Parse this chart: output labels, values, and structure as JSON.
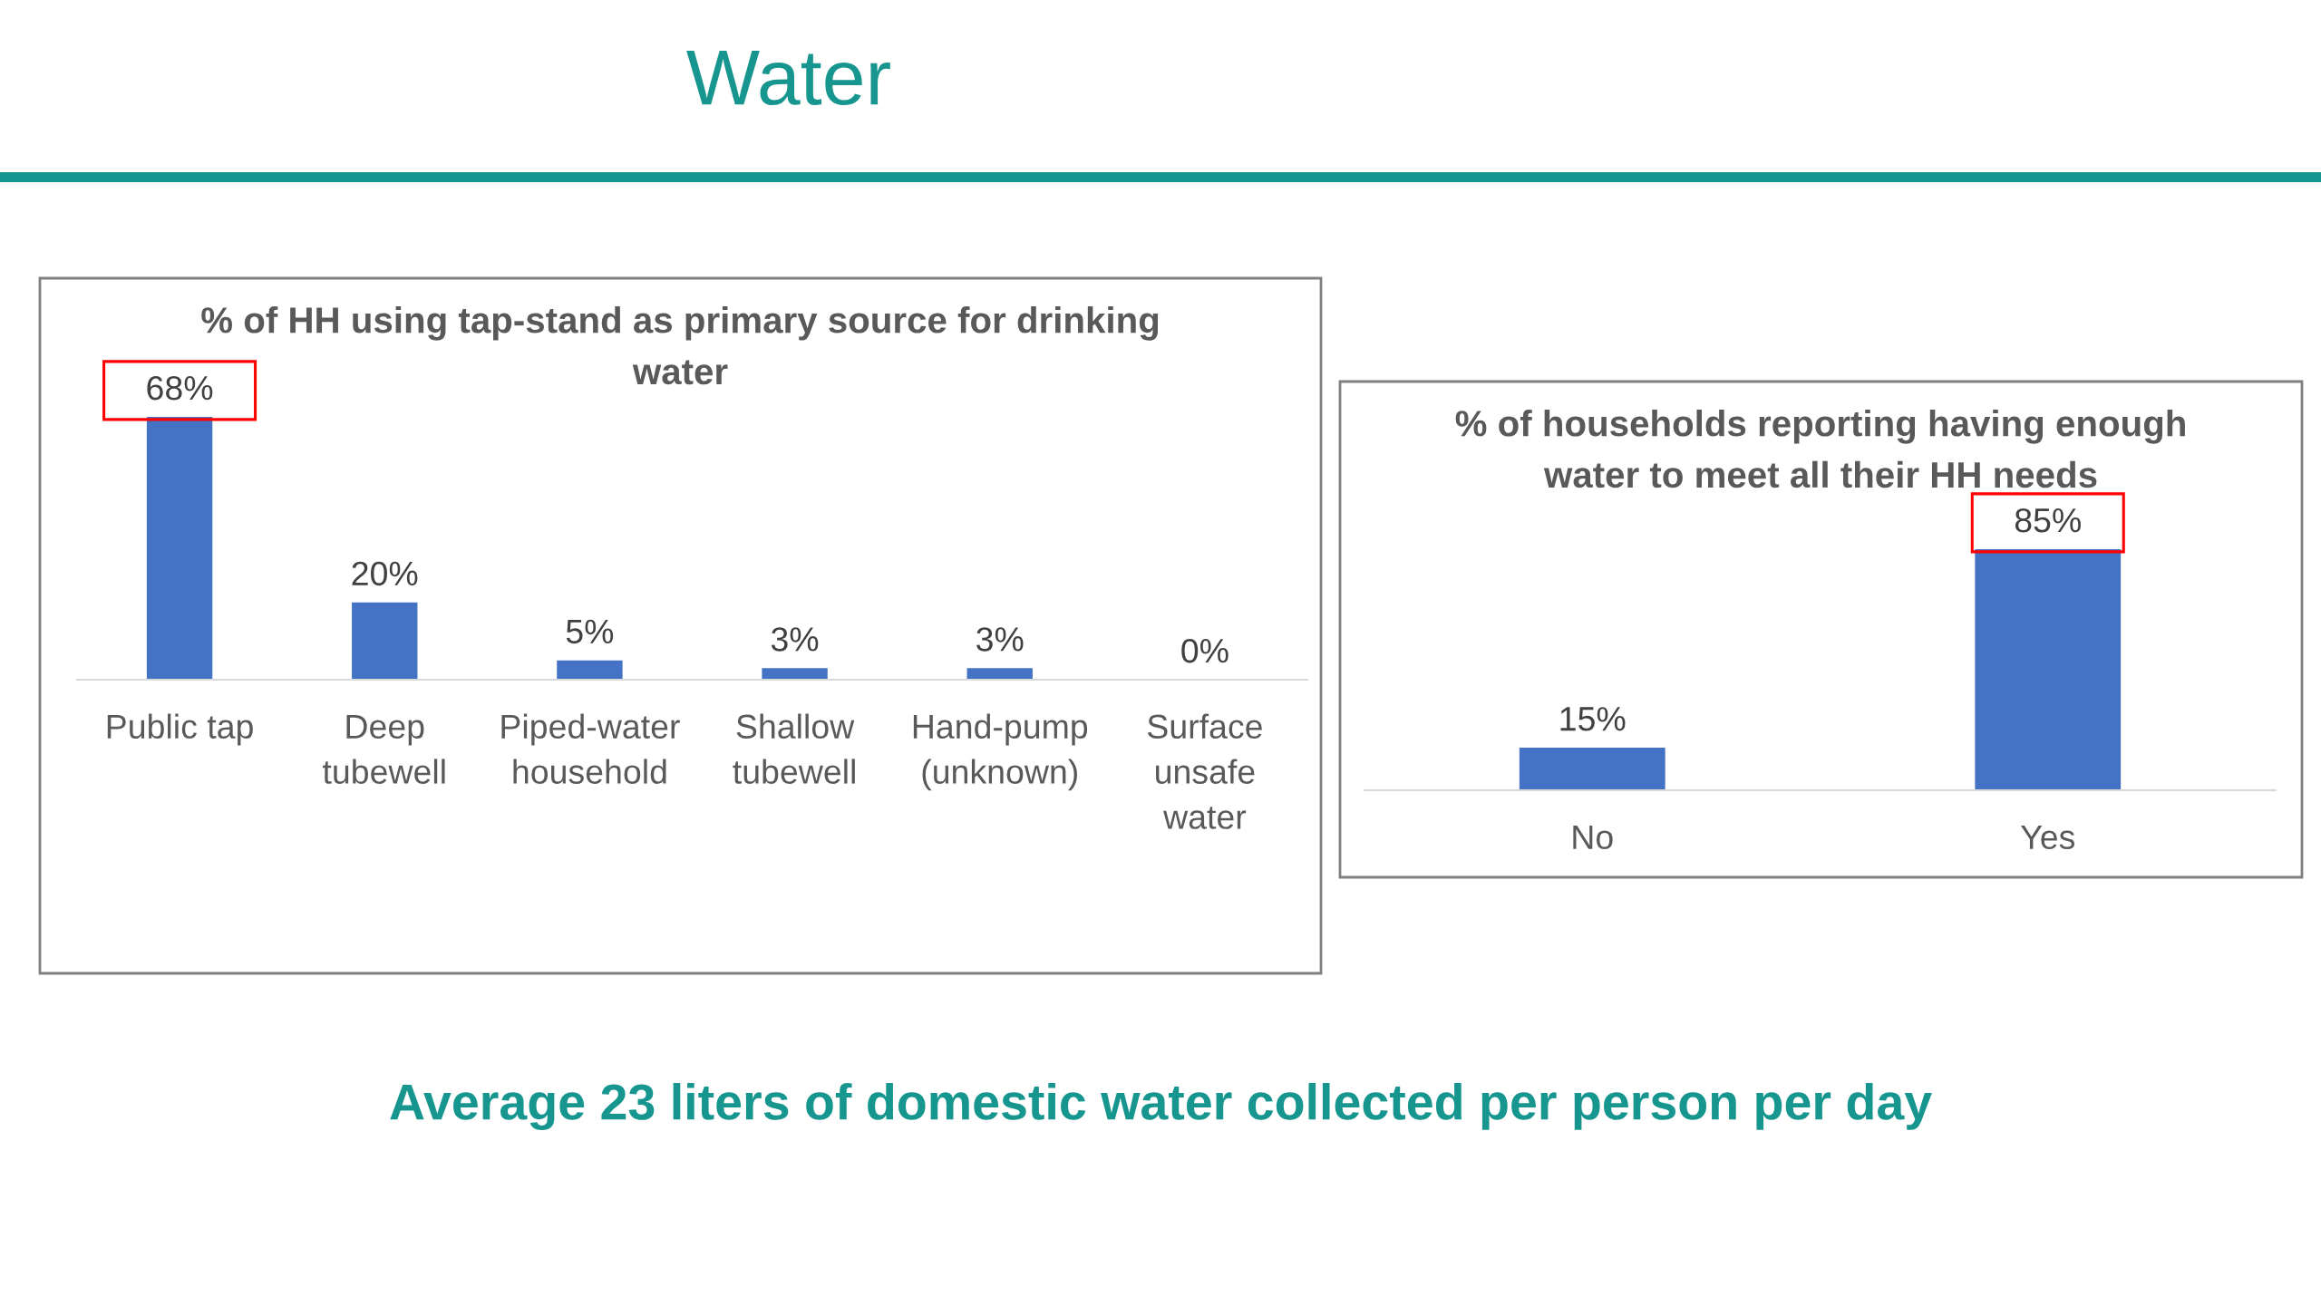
{
  "chart_data": [
    {
      "type": "other",
      "title": "Water",
      "annotations": [
        "Average 23 liters of domestic water collected per person per day"
      ]
    },
    {
      "type": "bar",
      "title": "% of HH using tap-stand as primary source for drinking water",
      "categories": [
        "Public tap",
        "Deep tubewell",
        "Piped-water household",
        "Shallow tubewell",
        "Hand-pump (unknown)",
        "Surface unsafe water"
      ],
      "values": [
        68,
        20,
        5,
        3,
        3,
        0
      ],
      "value_labels": [
        "68%",
        "20%",
        "5%",
        "3%",
        "3%",
        "0%"
      ],
      "color": "#4472c4",
      "tick_labels": "x"
    },
    {
      "type": "bar",
      "title": "% of households reporting having enough water to meet all their HH needs",
      "categories": [
        "No",
        "Yes"
      ],
      "values": [
        15,
        85
      ],
      "value_labels": [
        "15%",
        "85%"
      ],
      "color": "#4472c4",
      "tick_labels": "x"
    }
  ]
}
